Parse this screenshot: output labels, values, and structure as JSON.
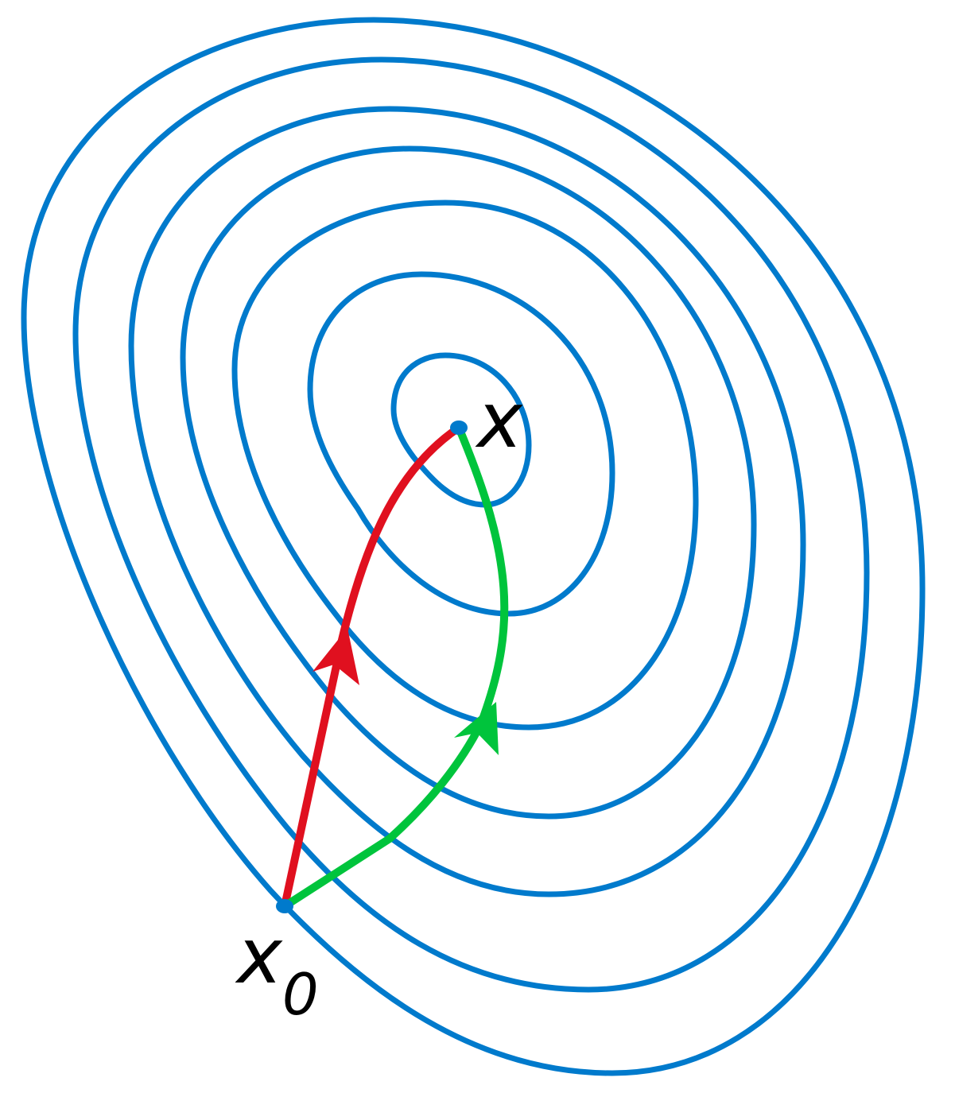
{
  "colors": {
    "contour": "#007acc",
    "red_path": "#e0101f",
    "green_path": "#00c43c",
    "point": "#007acc",
    "label": "#000000"
  },
  "labels": {
    "optimum": "x",
    "start_main": "x",
    "start_sub": "0"
  }
}
